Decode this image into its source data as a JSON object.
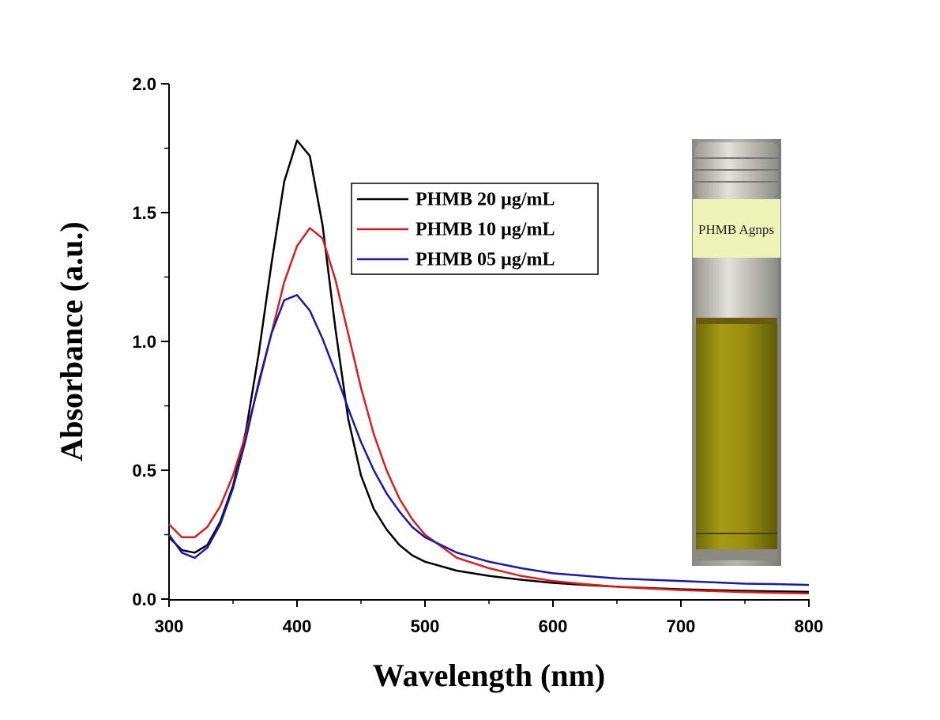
{
  "chart_data": {
    "type": "line",
    "x_label": "Wavelength (nm)",
    "y_label": "Absorbance (a.u.)",
    "x": [
      300,
      310,
      320,
      330,
      340,
      350,
      360,
      370,
      380,
      390,
      400,
      410,
      420,
      430,
      440,
      450,
      460,
      470,
      480,
      490,
      500,
      525,
      550,
      575,
      600,
      625,
      650,
      675,
      700,
      725,
      750,
      775,
      800
    ],
    "series": [
      {
        "name": "PHMB 20 µg/mL",
        "color": "#000000",
        "values": [
          0.24,
          0.19,
          0.18,
          0.21,
          0.3,
          0.44,
          0.65,
          0.95,
          1.3,
          1.62,
          1.78,
          1.72,
          1.45,
          1.05,
          0.7,
          0.48,
          0.35,
          0.27,
          0.21,
          0.17,
          0.145,
          0.11,
          0.09,
          0.075,
          0.063,
          0.055,
          0.048,
          0.043,
          0.038,
          0.035,
          0.032,
          0.03,
          0.028
        ]
      },
      {
        "name": "PHMB 10 µg/mL",
        "color": "#d62020",
        "values": [
          0.29,
          0.24,
          0.24,
          0.28,
          0.36,
          0.48,
          0.64,
          0.83,
          1.03,
          1.23,
          1.37,
          1.44,
          1.4,
          1.24,
          1.03,
          0.82,
          0.64,
          0.5,
          0.39,
          0.31,
          0.25,
          0.16,
          0.12,
          0.09,
          0.07,
          0.058,
          0.048,
          0.041,
          0.035,
          0.031,
          0.027,
          0.024,
          0.022
        ]
      },
      {
        "name": "PHMB 05 µg/mL",
        "color": "#1a1aa8",
        "values": [
          0.25,
          0.18,
          0.16,
          0.2,
          0.29,
          0.43,
          0.62,
          0.84,
          1.03,
          1.16,
          1.18,
          1.12,
          1.01,
          0.88,
          0.74,
          0.61,
          0.5,
          0.41,
          0.34,
          0.28,
          0.24,
          0.18,
          0.145,
          0.12,
          0.1,
          0.09,
          0.08,
          0.075,
          0.07,
          0.065,
          0.06,
          0.058,
          0.055
        ]
      }
    ],
    "xlim": [
      300,
      800
    ],
    "xticks": [
      300,
      400,
      500,
      600,
      700,
      800
    ],
    "xminor_ticks": [
      350,
      450,
      550,
      650,
      750
    ],
    "ylim": [
      0,
      2
    ],
    "yticks": [
      {
        "value": 0,
        "label": "0.0"
      },
      0.5,
      {
        "value": 1,
        "label": "1.0"
      },
      1.5,
      {
        "value": 2,
        "label": "2.0"
      }
    ],
    "yminor_ticks": [
      0.25,
      0.75,
      1.25,
      1.75
    ],
    "legend_position": "upper center",
    "inset_label": "PHMB Agnps"
  }
}
